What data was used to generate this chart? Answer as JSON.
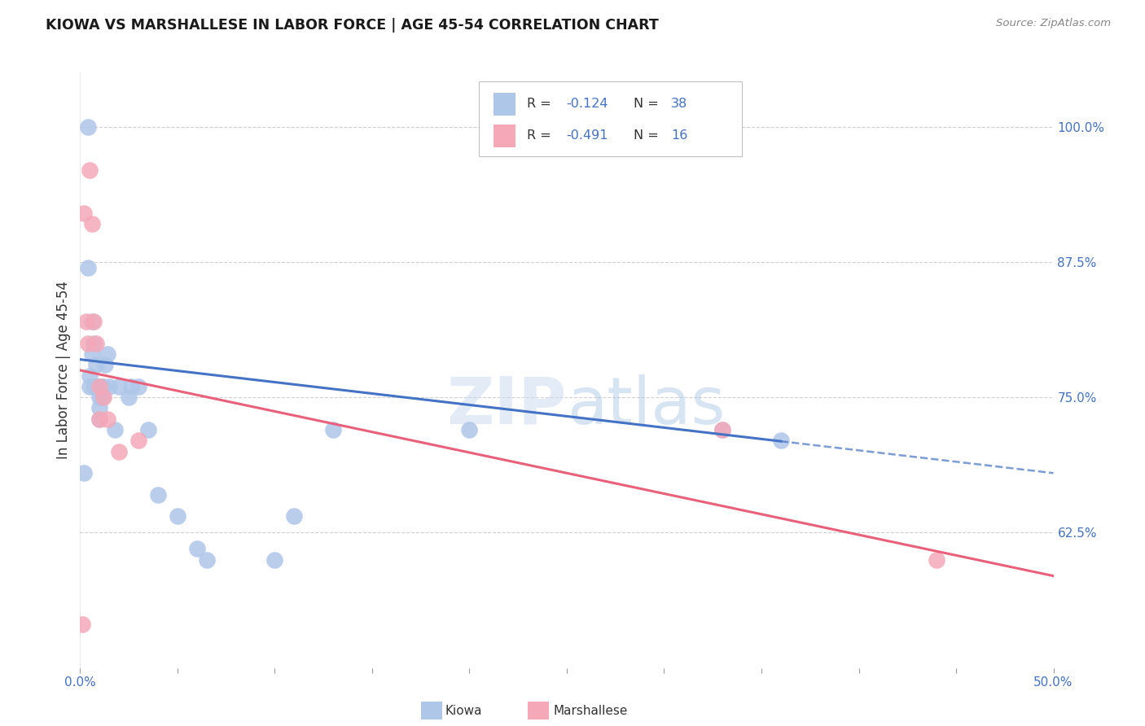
{
  "title": "KIOWA VS MARSHALLESE IN LABOR FORCE | AGE 45-54 CORRELATION CHART",
  "source": "Source: ZipAtlas.com",
  "ylabel": "In Labor Force | Age 45-54",
  "right_yticks": [
    "62.5%",
    "75.0%",
    "87.5%",
    "100.0%"
  ],
  "right_ytick_vals": [
    0.625,
    0.75,
    0.875,
    1.0
  ],
  "watermark_zip": "ZIP",
  "watermark_atlas": "atlas",
  "legend_kiowa_r": "R = ",
  "legend_kiowa_rv": "-0.124",
  "legend_kiowa_n": "N = ",
  "legend_kiowa_nv": "38",
  "legend_marsh_r": "R = ",
  "legend_marsh_rv": "-0.491",
  "legend_marsh_n": "N = ",
  "legend_marsh_nv": "16",
  "kiowa_color": "#aec6e8",
  "marshallese_color": "#f4a8b8",
  "kiowa_line_color": "#4472c4",
  "marshallese_line_color": "#e8607a",
  "kiowa_points_x": [
    0.002,
    0.004,
    0.004,
    0.005,
    0.005,
    0.006,
    0.006,
    0.007,
    0.007,
    0.008,
    0.008,
    0.009,
    0.009,
    0.01,
    0.01,
    0.01,
    0.011,
    0.011,
    0.012,
    0.013,
    0.014,
    0.015,
    0.018,
    0.02,
    0.025,
    0.026,
    0.03,
    0.035,
    0.04,
    0.05,
    0.06,
    0.065,
    0.1,
    0.11,
    0.13,
    0.2,
    0.33,
    0.36
  ],
  "kiowa_points_y": [
    0.68,
    1.0,
    0.87,
    0.77,
    0.76,
    0.82,
    0.79,
    0.76,
    0.8,
    0.78,
    0.76,
    0.76,
    0.76,
    0.75,
    0.74,
    0.73,
    0.76,
    0.75,
    0.76,
    0.78,
    0.79,
    0.76,
    0.72,
    0.76,
    0.75,
    0.76,
    0.76,
    0.72,
    0.66,
    0.64,
    0.61,
    0.6,
    0.6,
    0.64,
    0.72,
    0.72,
    0.72,
    0.71
  ],
  "marshallese_points_x": [
    0.001,
    0.002,
    0.003,
    0.004,
    0.005,
    0.006,
    0.007,
    0.008,
    0.01,
    0.01,
    0.012,
    0.014,
    0.02,
    0.03,
    0.33,
    0.44
  ],
  "marshallese_points_y": [
    0.54,
    0.92,
    0.82,
    0.8,
    0.96,
    0.91,
    0.82,
    0.8,
    0.76,
    0.73,
    0.75,
    0.73,
    0.7,
    0.71,
    0.72,
    0.6
  ],
  "xlim": [
    0.0,
    0.5
  ],
  "ylim": [
    0.5,
    1.05
  ],
  "kiowa_line_x_solid_end": 0.36,
  "kiowa_line_x_dash_start": 0.36,
  "kiowa_line_x_dash_end": 0.5,
  "grid_color": "#d0d0d0",
  "tick_color": "#999999",
  "background_color": "#ffffff",
  "label_color_blue": "#4472c4",
  "label_color_dark": "#333333"
}
